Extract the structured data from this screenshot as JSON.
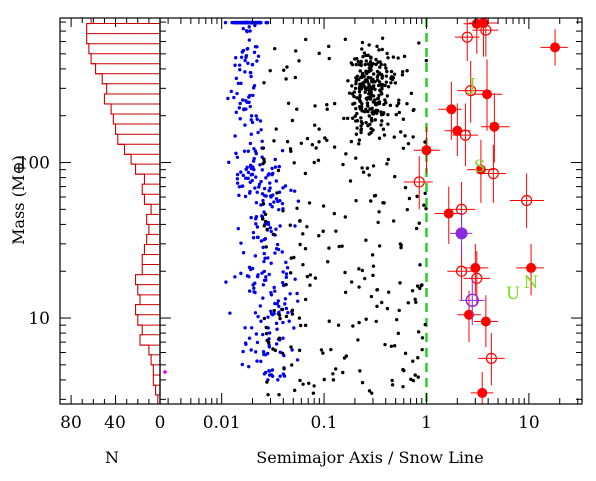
{
  "chart_data": {
    "type": "scatter",
    "title": "",
    "xlabel": "Semimajor Axis / Snow Line",
    "ylabel": "Mass (M⊕)",
    "x_scale": "log",
    "y_scale": "log",
    "xlim": [
      0.0025,
      33
    ],
    "ylim": [
      2.8,
      850
    ],
    "x_tick_labels": [
      "0.01",
      "0.1",
      "1",
      "10"
    ],
    "y_tick_labels": [
      "10",
      "100"
    ],
    "snow_line": {
      "x": 1,
      "color": "#22cc22",
      "style": "dashed"
    },
    "colors": {
      "radial_velocity": "#0000ee",
      "transit": "#000000",
      "microlensing": "#ff0000",
      "solar_system": "#7cdc1e",
      "purple_planets": "#8a2be2",
      "histogram": "#cc0000",
      "magenta_point": "#ee00ee"
    },
    "histogram": {
      "xlabel": "N",
      "x_tick_labels": [
        "80",
        "40",
        "0"
      ],
      "xlim": [
        90,
        0
      ],
      "bin_edges_mass": [
        2.8,
        3.2,
        3.7,
        4.3,
        5.0,
        5.8,
        6.7,
        7.8,
        9.0,
        10.5,
        12.2,
        14.1,
        16.4,
        19.0,
        22.1,
        25.6,
        29.7,
        34.5,
        40.0,
        46.4,
        53.9,
        62.5,
        72.6,
        84.2,
        97.7,
        113,
        131,
        152,
        177,
        205,
        238,
        276,
        321,
        372,
        432,
        501,
        581,
        675,
        783,
        850
      ],
      "counts": [
        2,
        4,
        6,
        6,
        8,
        10,
        18,
        16,
        20,
        22,
        18,
        20,
        22,
        16,
        16,
        14,
        12,
        10,
        12,
        8,
        14,
        16,
        14,
        22,
        26,
        32,
        38,
        40,
        42,
        44,
        50,
        48,
        52,
        58,
        62,
        64,
        66,
        66,
        62
      ]
    },
    "solar_system_planets": [
      {
        "letter": "J",
        "x": 2.8,
        "y": 318
      },
      {
        "letter": "S",
        "x": 3.3,
        "y": 95
      },
      {
        "letter": "U",
        "x": 7.0,
        "y": 14.5
      },
      {
        "letter": "N",
        "x": 10.5,
        "y": 17.1
      }
    ],
    "series": [
      {
        "name": "",
        "kind": "radial-velocity",
        "points": "generated"
      },
      {
        "name": "",
        "kind": "transit",
        "points": "generated"
      },
      {
        "name": "",
        "kind": "microlensing-filled",
        "points": [
          {
            "x": 3.1,
            "y": 780,
            "xlo": 2.3,
            "xhi": 4.0,
            "ylo": 500,
            "yhi": 850
          },
          {
            "x": 3.6,
            "y": 790,
            "xlo": 2.6,
            "xhi": 5.0,
            "ylo": 480,
            "yhi": 850
          },
          {
            "x": 18,
            "y": 550,
            "xlo": 13,
            "xhi": 24,
            "ylo": 420,
            "yhi": 720
          },
          {
            "x": 3.9,
            "y": 275,
            "xlo": 2.8,
            "xhi": 5.5,
            "ylo": 160,
            "yhi": 460
          },
          {
            "x": 1.75,
            "y": 220,
            "xlo": 1.3,
            "xhi": 2.2,
            "ylo": 140,
            "yhi": 330
          },
          {
            "x": 2.0,
            "y": 160,
            "xlo": 1.5,
            "xhi": 2.7,
            "ylo": 110,
            "yhi": 240
          },
          {
            "x": 4.6,
            "y": 170,
            "xlo": 3.4,
            "xhi": 6.5,
            "ylo": 100,
            "yhi": 280
          },
          {
            "x": 1.0,
            "y": 120,
            "xlo": 0.75,
            "xhi": 1.35,
            "ylo": 85,
            "yhi": 170
          },
          {
            "x": 3.4,
            "y": 90,
            "xlo": 2.5,
            "xhi": 4.6,
            "ylo": 55,
            "yhi": 140
          },
          {
            "x": 1.65,
            "y": 47,
            "xlo": 1.2,
            "xhi": 2.2,
            "ylo": 30,
            "yhi": 70
          },
          {
            "x": 3.0,
            "y": 21,
            "xlo": 2.3,
            "xhi": 4.0,
            "ylo": 14,
            "yhi": 30
          },
          {
            "x": 10.5,
            "y": 21,
            "xlo": 7.5,
            "xhi": 14,
            "ylo": 14,
            "yhi": 30
          },
          {
            "x": 2.6,
            "y": 10.5,
            "xlo": 2.0,
            "xhi": 3.4,
            "ylo": 7,
            "yhi": 15
          },
          {
            "x": 3.8,
            "y": 9.5,
            "xlo": 2.9,
            "xhi": 5.0,
            "ylo": 6.5,
            "yhi": 14
          },
          {
            "x": 3.5,
            "y": 3.3,
            "xlo": 2.7,
            "xhi": 4.5,
            "ylo": 2.8,
            "yhi": 4.5
          }
        ]
      },
      {
        "name": "",
        "kind": "microlensing-open",
        "points": [
          {
            "x": 3.8,
            "y": 710,
            "xlo": 2.8,
            "xhi": 5.0,
            "ylo": 480,
            "yhi": 850
          },
          {
            "x": 2.5,
            "y": 640,
            "xlo": 1.9,
            "xhi": 3.3,
            "ylo": 450,
            "yhi": 850
          },
          {
            "x": 2.7,
            "y": 290,
            "xlo": 2.0,
            "xhi": 3.6,
            "ylo": 180,
            "yhi": 450
          },
          {
            "x": 2.4,
            "y": 150,
            "xlo": 1.8,
            "xhi": 3.2,
            "ylo": 95,
            "yhi": 240
          },
          {
            "x": 0.85,
            "y": 75,
            "xlo": 0.6,
            "xhi": 1.15,
            "ylo": 50,
            "yhi": 110
          },
          {
            "x": 4.5,
            "y": 85,
            "xlo": 3.3,
            "xhi": 6.0,
            "ylo": 55,
            "yhi": 130
          },
          {
            "x": 9.5,
            "y": 57,
            "xlo": 6.5,
            "xhi": 14,
            "ylo": 38,
            "yhi": 85
          },
          {
            "x": 2.2,
            "y": 50,
            "xlo": 1.6,
            "xhi": 3.0,
            "ylo": 32,
            "yhi": 75
          },
          {
            "x": 2.2,
            "y": 20,
            "xlo": 1.6,
            "xhi": 3.0,
            "ylo": 13,
            "yhi": 30
          },
          {
            "x": 3.1,
            "y": 18,
            "xlo": 2.3,
            "xhi": 4.2,
            "ylo": 12,
            "yhi": 27
          },
          {
            "x": 4.3,
            "y": 5.5,
            "xlo": 3.2,
            "xhi": 5.8,
            "ylo": 3.7,
            "yhi": 8
          }
        ]
      },
      {
        "name": "",
        "kind": "purple-filled",
        "points": [
          {
            "x": 2.2,
            "y": 35,
            "xlo": 1.7,
            "xhi": 2.8,
            "ylo": 25,
            "yhi": 48
          }
        ]
      },
      {
        "name": "",
        "kind": "purple-open",
        "points": [
          {
            "x": 2.8,
            "y": 13,
            "xlo": 2.1,
            "xhi": 3.7,
            "ylo": 9,
            "yhi": 18
          }
        ]
      },
      {
        "name": "",
        "kind": "magenta-point",
        "points": [
          {
            "x": 0.0028,
            "y": 4.5
          }
        ]
      }
    ]
  }
}
